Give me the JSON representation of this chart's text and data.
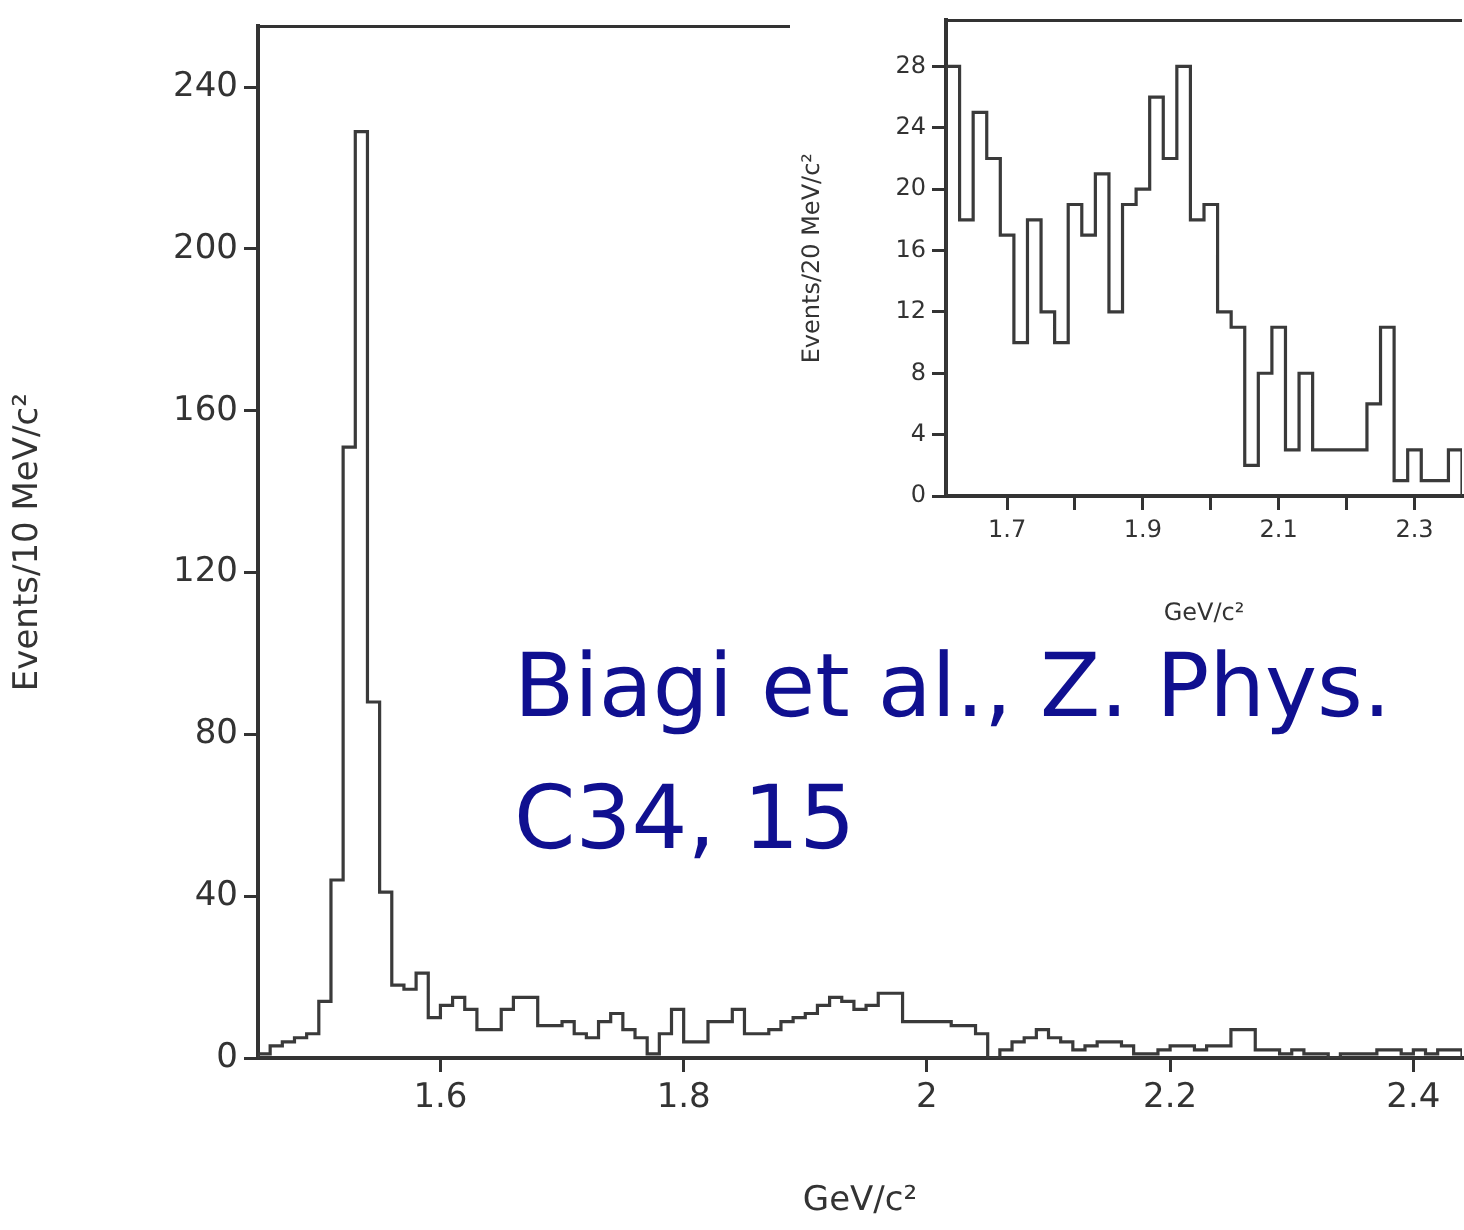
{
  "chart_data": [
    {
      "type": "histogram",
      "xlabel": "GeV/c²",
      "ylabel": "Events/10 MeV/c²",
      "bins": [
        1.45,
        1.46,
        1.47,
        1.48,
        1.49,
        1.5,
        1.51,
        1.52,
        1.53,
        1.54,
        1.55,
        1.56,
        1.57,
        1.58,
        1.59,
        1.6,
        1.61,
        1.62,
        1.63,
        1.64,
        1.65,
        1.66,
        1.67,
        1.68,
        1.69,
        1.7,
        1.71,
        1.72,
        1.73,
        1.74,
        1.75,
        1.76,
        1.77,
        1.78,
        1.79,
        1.8,
        1.81,
        1.82,
        1.83,
        1.84,
        1.85,
        1.86,
        1.87,
        1.88,
        1.89,
        1.9,
        1.91,
        1.92,
        1.93,
        1.94,
        1.95,
        1.96,
        1.97,
        1.98,
        1.99,
        2.0,
        2.01,
        2.02,
        2.03,
        2.04,
        2.05,
        2.06,
        2.07,
        2.08,
        2.09,
        2.1,
        2.11,
        2.12,
        2.13,
        2.14,
        2.15,
        2.16,
        2.17,
        2.18,
        2.19,
        2.2,
        2.21,
        2.22,
        2.23,
        2.24,
        2.25,
        2.26,
        2.27,
        2.28,
        2.29,
        2.3,
        2.31,
        2.32,
        2.33,
        2.34,
        2.35,
        2.36,
        2.37,
        2.38,
        2.39,
        2.4,
        2.41,
        2.42,
        2.43,
        2.44
      ],
      "values": [
        1,
        3,
        4,
        5,
        6,
        14,
        44,
        151,
        229,
        88,
        41,
        18,
        17,
        21,
        10,
        13,
        15,
        12,
        7,
        7,
        12,
        15,
        15,
        8,
        8,
        9,
        6,
        5,
        9,
        11,
        7,
        5,
        1,
        6,
        12,
        4,
        4,
        9,
        9,
        12,
        6,
        6,
        7,
        9,
        10,
        11,
        13,
        15,
        14,
        12,
        13,
        16,
        16,
        9,
        9,
        9,
        9,
        8,
        8,
        6,
        0,
        2,
        4,
        5,
        7,
        5,
        4,
        2,
        3,
        4,
        4,
        3,
        1,
        1,
        2,
        3,
        3,
        2,
        3,
        3,
        7,
        7,
        2,
        2,
        1,
        2,
        1,
        1,
        0,
        1,
        1,
        1,
        2,
        2,
        1,
        2,
        1,
        2,
        2
      ],
      "color": "#3a3a3a",
      "xlim": [
        1.45,
        2.44
      ],
      "ylim": [
        0,
        255
      ],
      "xticks": [
        1.6,
        1.8,
        2.0,
        2.2,
        2.4
      ],
      "yticks": [
        0,
        40,
        80,
        120,
        160,
        200,
        240
      ],
      "grid": false,
      "annotations": [
        "Biagi et al., Z. Phys. C34, 15"
      ]
    },
    {
      "type": "histogram",
      "xlabel": "GeV/c²",
      "ylabel": "Events/20 MeV/c²",
      "bins": [
        1.61,
        1.63,
        1.65,
        1.67,
        1.69,
        1.71,
        1.73,
        1.75,
        1.77,
        1.79,
        1.81,
        1.83,
        1.85,
        1.87,
        1.89,
        1.91,
        1.93,
        1.95,
        1.97,
        1.99,
        2.01,
        2.03,
        2.05,
        2.07,
        2.09,
        2.11,
        2.13,
        2.15,
        2.17,
        2.19,
        2.21,
        2.23,
        2.25,
        2.27,
        2.29,
        2.31,
        2.33,
        2.35,
        2.37
      ],
      "values": [
        28,
        18,
        25,
        22,
        17,
        10,
        18,
        12,
        10,
        19,
        17,
        21,
        12,
        19,
        20,
        26,
        22,
        28,
        18,
        19,
        12,
        11,
        2,
        8,
        11,
        3,
        8,
        3,
        3,
        3,
        3,
        6,
        11,
        1,
        3,
        1,
        1,
        3
      ],
      "color": "#3a3a3a",
      "xlim": [
        1.61,
        2.37
      ],
      "ylim": [
        0,
        31
      ],
      "xticks": [
        1.7,
        {
          "value": 1.8,
          "label": null
        },
        1.9,
        {
          "value": 2.0,
          "label": null
        },
        2.1,
        {
          "value": 2.2,
          "label": null
        },
        2.3
      ],
      "yticks": [
        0,
        4,
        8,
        12,
        16,
        20,
        24,
        28
      ],
      "grid": false
    }
  ]
}
